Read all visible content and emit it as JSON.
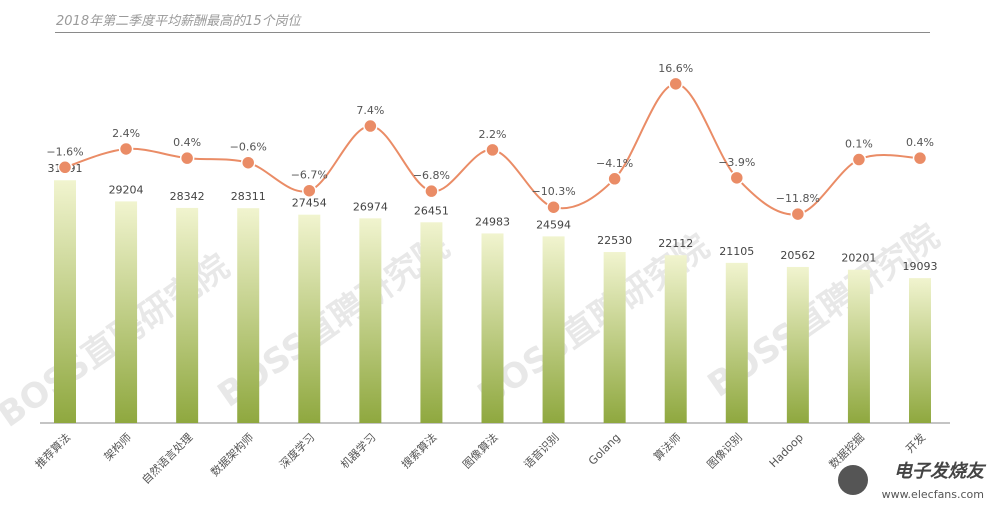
{
  "title": "2018年第二季度平均薪酬最高的15个岗位",
  "watermark": {
    "text": "BOSS直聘研究院",
    "brand": "电子发烧友",
    "site": "www.elecfans.com"
  },
  "chart_data": [
    {
      "type": "bar",
      "categories": [
        "推荐算法",
        "架构师",
        "自然语言处理",
        "数据架构师",
        "深度学习",
        "机器学习",
        "搜索算法",
        "图像算法",
        "语音识别",
        "Golang",
        "算法师",
        "图像识别",
        "Hadoop",
        "数据挖掘",
        "开发"
      ],
      "values": [
        31991,
        29204,
        28342,
        28311,
        27454,
        26974,
        26451,
        24983,
        24594,
        22530,
        22112,
        21105,
        20562,
        20201,
        19093
      ],
      "ylim": [
        0,
        34000
      ],
      "grid": false,
      "colors": {
        "top": "#f1f4cf",
        "bottom": "#8fa83f"
      }
    },
    {
      "type": "line",
      "categories": [
        "推荐算法",
        "架构师",
        "自然语言处理",
        "数据架构师",
        "深度学习",
        "机器学习",
        "搜索算法",
        "图像算法",
        "语音识别",
        "Golang",
        "算法师",
        "图像识别",
        "Hadoop",
        "数据挖掘",
        "开发"
      ],
      "values": [
        -1.6,
        2.4,
        0.4,
        -0.6,
        -6.7,
        7.4,
        -6.8,
        2.2,
        -10.3,
        -4.1,
        16.6,
        -3.9,
        -11.8,
        0.1,
        0.4
      ],
      "labels": [
        "−1.6%",
        "2.4%",
        "0.4%",
        "−0.6%",
        "−6.7%",
        "7.4%",
        "−6.8%",
        "2.2%",
        "−10.3%",
        "−4.1%",
        "16.6%",
        "−3.9%",
        "−11.8%",
        "0.1%",
        "0.4%"
      ],
      "ylim": [
        -12,
        17
      ],
      "color": "#ea8c66"
    }
  ]
}
